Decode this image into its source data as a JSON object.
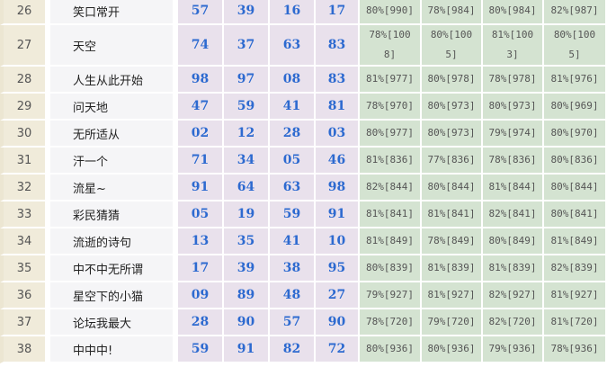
{
  "rows": [
    {
      "idx": "26",
      "name": "笑口常开",
      "nums": [
        "57",
        "39",
        "16",
        "17"
      ],
      "pcts": [
        "80%[990]",
        "78%[984]",
        "80%[984]",
        "82%[987]"
      ]
    },
    {
      "idx": "27",
      "name": "天空",
      "nums": [
        "74",
        "37",
        "63",
        "83"
      ],
      "pcts": [
        "78%[1008]",
        "80%[1005]",
        "81%[1003]",
        "80%[1005]"
      ]
    },
    {
      "idx": "28",
      "name": "人生从此开始",
      "nums": [
        "98",
        "97",
        "08",
        "83"
      ],
      "pcts": [
        "81%[977]",
        "80%[978]",
        "78%[978]",
        "81%[976]"
      ]
    },
    {
      "idx": "29",
      "name": "问天地",
      "nums": [
        "47",
        "59",
        "41",
        "81"
      ],
      "pcts": [
        "78%[970]",
        "80%[973]",
        "80%[973]",
        "80%[969]"
      ]
    },
    {
      "idx": "30",
      "name": "无所适从",
      "nums": [
        "02",
        "12",
        "28",
        "03"
      ],
      "pcts": [
        "80%[977]",
        "80%[973]",
        "79%[974]",
        "80%[970]"
      ]
    },
    {
      "idx": "31",
      "name": "汗一个",
      "nums": [
        "71",
        "34",
        "05",
        "46"
      ],
      "pcts": [
        "81%[836]",
        "77%[836]",
        "78%[836]",
        "80%[836]"
      ]
    },
    {
      "idx": "32",
      "name": "流星~",
      "nums": [
        "91",
        "64",
        "63",
        "98"
      ],
      "pcts": [
        "82%[844]",
        "80%[844]",
        "81%[844]",
        "80%[844]"
      ]
    },
    {
      "idx": "33",
      "name": "彩民猜猜",
      "nums": [
        "05",
        "19",
        "59",
        "91"
      ],
      "pcts": [
        "81%[841]",
        "81%[841]",
        "82%[841]",
        "80%[841]"
      ]
    },
    {
      "idx": "34",
      "name": "流逝的诗句",
      "nums": [
        "13",
        "35",
        "41",
        "10"
      ],
      "pcts": [
        "81%[849]",
        "78%[849]",
        "80%[849]",
        "81%[849]"
      ]
    },
    {
      "idx": "35",
      "name": "中不中无所谓",
      "nums": [
        "17",
        "39",
        "38",
        "95"
      ],
      "pcts": [
        "80%[839]",
        "81%[839]",
        "81%[839]",
        "82%[839]"
      ]
    },
    {
      "idx": "36",
      "name": "星空下的小猫",
      "nums": [
        "09",
        "89",
        "48",
        "27"
      ],
      "pcts": [
        "79%[927]",
        "81%[927]",
        "82%[927]",
        "81%[927]"
      ]
    },
    {
      "idx": "37",
      "name": "论坛我最大",
      "nums": [
        "28",
        "90",
        "57",
        "90"
      ],
      "pcts": [
        "78%[720]",
        "79%[720]",
        "82%[720]",
        "81%[720]"
      ]
    },
    {
      "idx": "38",
      "name": "中中中!",
      "nums": [
        "59",
        "91",
        "82",
        "72"
      ],
      "pcts": [
        "80%[936]",
        "80%[936]",
        "79%[936]",
        "78%[936]"
      ]
    }
  ]
}
